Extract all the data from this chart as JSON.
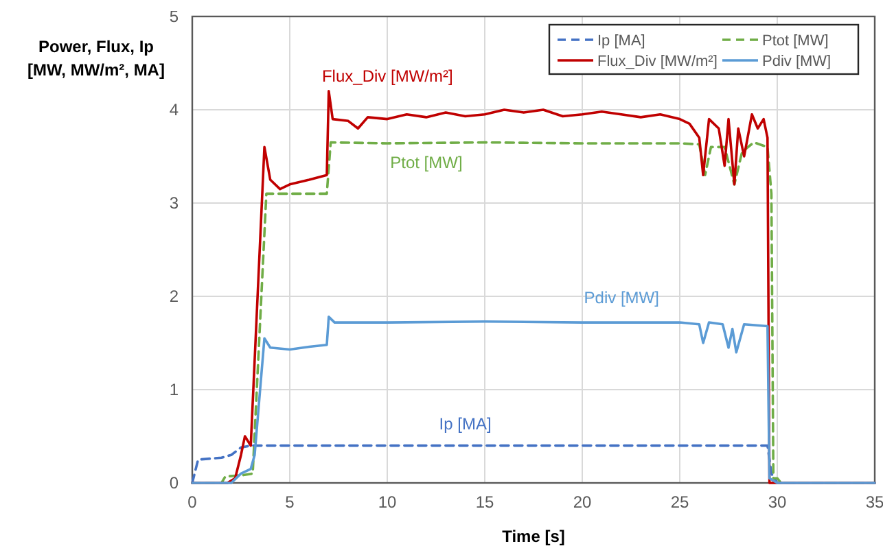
{
  "chart_data": {
    "type": "line",
    "xlabel": "Time [s]",
    "ylabel": "Power, Flux, Ip\n[MW, MW/m², MA]",
    "xlim": [
      0,
      35
    ],
    "xticks": [
      0,
      5,
      10,
      15,
      20,
      25,
      30,
      35
    ],
    "ylim": [
      0,
      5
    ],
    "yticks": [
      0,
      1,
      2,
      3,
      4,
      5
    ],
    "grid": true,
    "legend": "top right",
    "series": [
      {
        "name": "Ip [MA]",
        "color": "#4472c4",
        "line_style": "dashed",
        "x": [
          0,
          0.3,
          1.5,
          2,
          2.5,
          3,
          29.5,
          29.7,
          30,
          35
        ],
        "values": [
          0,
          0.25,
          0.27,
          0.3,
          0.38,
          0.4,
          0.4,
          0.1,
          0,
          0
        ]
      },
      {
        "name": "Ptot [MW]",
        "color": "#70ad47",
        "line_style": "dashed",
        "x": [
          0,
          1.5,
          1.7,
          2.5,
          3.1,
          3.8,
          6.9,
          7.1,
          10,
          15,
          20,
          25,
          26,
          26.3,
          26.6,
          27.3,
          27.8,
          28.2,
          28.8,
          29.5,
          29.7,
          29.8,
          30,
          30.2,
          35
        ],
        "values": [
          0,
          0,
          0.07,
          0.08,
          0.1,
          3.1,
          3.1,
          3.65,
          3.64,
          3.65,
          3.64,
          3.64,
          3.63,
          3.3,
          3.6,
          3.6,
          3.2,
          3.55,
          3.65,
          3.6,
          3.1,
          0.05,
          0.05,
          0,
          0
        ]
      },
      {
        "name": "Flux_Div [MW/m²]",
        "color": "#c00000",
        "line_style": "solid",
        "x": [
          0,
          1.8,
          2.2,
          2.5,
          2.7,
          3,
          3.7,
          4,
          4.5,
          5,
          6,
          6.9,
          7,
          7.2,
          8,
          8.5,
          9,
          10,
          11,
          12,
          13,
          14,
          15,
          16,
          17,
          18,
          19,
          20,
          21,
          22,
          23,
          24,
          25,
          25.5,
          26,
          26.2,
          26.5,
          27,
          27.3,
          27.5,
          27.8,
          28,
          28.3,
          28.7,
          29,
          29.3,
          29.5,
          29.6,
          35
        ],
        "values": [
          0,
          0,
          0.05,
          0.3,
          0.5,
          0.4,
          3.6,
          3.25,
          3.15,
          3.2,
          3.25,
          3.3,
          4.2,
          3.9,
          3.88,
          3.8,
          3.92,
          3.9,
          3.95,
          3.92,
          3.97,
          3.93,
          3.95,
          4,
          3.97,
          4,
          3.93,
          3.95,
          3.98,
          3.95,
          3.92,
          3.95,
          3.9,
          3.85,
          3.7,
          3.3,
          3.9,
          3.8,
          3.4,
          3.9,
          3.2,
          3.8,
          3.5,
          3.95,
          3.8,
          3.9,
          3.7,
          0,
          0
        ]
      },
      {
        "name": "Pdiv [MW]",
        "color": "#5b9bd5",
        "line_style": "solid",
        "x": [
          0,
          2,
          2.5,
          3,
          3.2,
          3.7,
          4,
          5,
          6,
          6.9,
          7,
          7.3,
          10,
          15,
          20,
          25,
          26,
          26.2,
          26.5,
          27.2,
          27.5,
          27.7,
          27.9,
          28.3,
          29.5,
          29.6,
          30,
          35
        ],
        "values": [
          0,
          0,
          0.1,
          0.15,
          0.3,
          1.55,
          1.45,
          1.43,
          1.46,
          1.48,
          1.78,
          1.72,
          1.72,
          1.73,
          1.72,
          1.72,
          1.7,
          1.5,
          1.72,
          1.7,
          1.45,
          1.65,
          1.4,
          1.7,
          1.68,
          0.05,
          0,
          0
        ]
      }
    ]
  }
}
